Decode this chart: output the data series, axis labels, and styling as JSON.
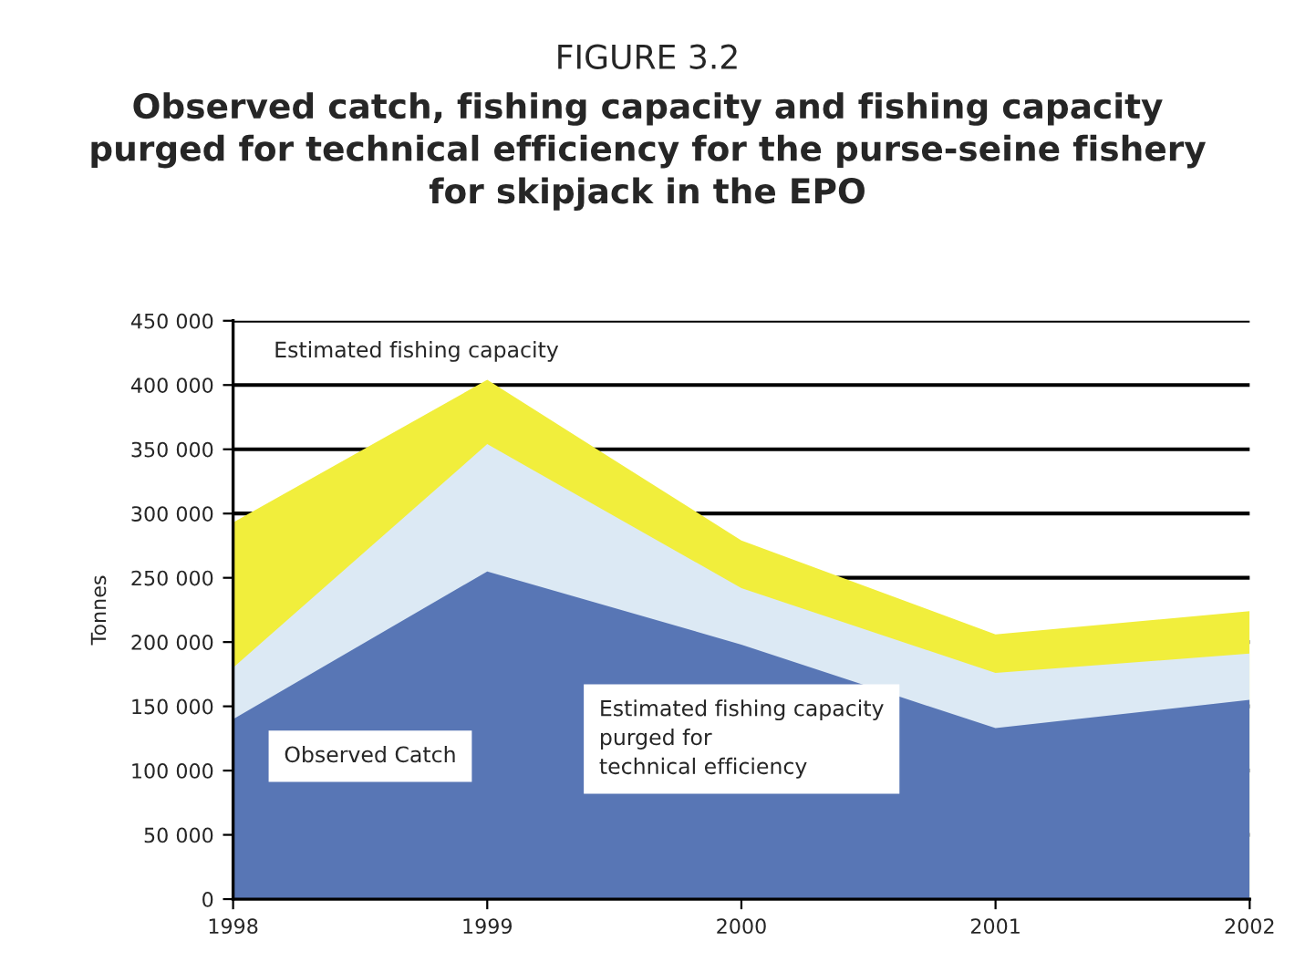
{
  "chart_data": {
    "type": "area",
    "title": "FIGURE 3.2",
    "subtitle": "Observed catch, fishing capacity and fishing capacity\npurged for technical efficiency for the purse-seine fishery\nfor skipjack in the EPO",
    "ylabel": "Tonnes",
    "x": [
      1998,
      1999,
      2000,
      2001,
      2002
    ],
    "series": [
      {
        "name": "Estimated fishing capacity",
        "color": "#f1ee3c",
        "values": [
          293000,
          404000,
          279000,
          206000,
          224000
        ]
      },
      {
        "name": "Estimated fishing capacity\npurged for\ntechnical efficiency",
        "color": "#dce9f4",
        "values": [
          180000,
          354000,
          242000,
          176000,
          191000
        ]
      },
      {
        "name": "Observed Catch",
        "color": "#5876b5",
        "values": [
          140000,
          255000,
          198000,
          133000,
          155000
        ]
      }
    ],
    "xlim": [
      1998,
      2002
    ],
    "xticks": [
      1998,
      1999,
      2000,
      2001,
      2002
    ],
    "ylim": [
      0,
      450000
    ],
    "yticks": [
      0,
      {
        "value": 50000,
        "label": "50 000"
      },
      {
        "value": 100000,
        "label": "100 000"
      },
      {
        "value": 150000,
        "label": "150 000"
      },
      {
        "value": 200000,
        "label": "200 000"
      },
      {
        "value": 250000,
        "label": "250 000"
      },
      {
        "value": 300000,
        "label": "300 000"
      },
      {
        "value": 350000,
        "label": "350 000"
      },
      {
        "value": 400000,
        "label": "400 000"
      },
      {
        "value": 450000,
        "label": "450 000"
      }
    ],
    "grid": "y",
    "legend": false
  }
}
